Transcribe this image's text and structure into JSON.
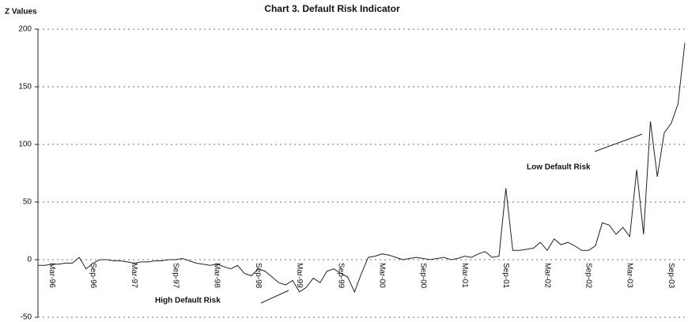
{
  "chart_data": {
    "type": "line",
    "title": "Chart 3.  Default Risk Indicator",
    "y_label": "Z Values",
    "annotations": [
      "Low Default Risk",
      "High Default Risk"
    ],
    "categories": [
      null,
      null,
      "Mar-96",
      null,
      null,
      null,
      null,
      null,
      "Sep-96",
      null,
      null,
      null,
      null,
      null,
      "Mar-97",
      null,
      null,
      null,
      null,
      null,
      "Sep-97",
      null,
      null,
      null,
      null,
      null,
      "Mar-98",
      null,
      null,
      null,
      null,
      null,
      "Sep-98",
      null,
      null,
      null,
      null,
      null,
      "Mar-99",
      null,
      null,
      null,
      null,
      null,
      "Sep-99",
      null,
      null,
      null,
      null,
      null,
      "Mar-00",
      null,
      null,
      null,
      null,
      null,
      "Sep-00",
      null,
      null,
      null,
      null,
      null,
      "Mar-01",
      null,
      null,
      null,
      null,
      null,
      "Sep-01",
      null,
      null,
      null,
      null,
      null,
      "Mar-02",
      null,
      null,
      null,
      null,
      null,
      "Sep-02",
      null,
      null,
      null,
      null,
      null,
      "Mar-03",
      null,
      null,
      null,
      null,
      null,
      "Sep-03",
      null,
      null
    ],
    "series": [
      {
        "name": "Z Values",
        "color": "#222222",
        "values": [
          -5,
          -5,
          -4,
          -4,
          -3,
          -3,
          2,
          -8,
          -3,
          0,
          0,
          -1,
          -1,
          -2,
          -3,
          -2,
          -2,
          -1,
          -1,
          0,
          0,
          1,
          -1,
          -3,
          -4,
          -5,
          -4,
          -6,
          -8,
          -5,
          -12,
          -14,
          -8,
          -10,
          -15,
          -20,
          -22,
          -18,
          -28,
          -24,
          -16,
          -20,
          -10,
          -8,
          -12,
          -15,
          -28,
          -12,
          2,
          3,
          5,
          4,
          2,
          0,
          1,
          2,
          1,
          0,
          1,
          2,
          0,
          1,
          3,
          2,
          5,
          7,
          2,
          3,
          62,
          8,
          8,
          9,
          10,
          15,
          8,
          18,
          13,
          15,
          12,
          8,
          8,
          12,
          32,
          30,
          22,
          28,
          20,
          78,
          22,
          120,
          72,
          110,
          118,
          135,
          188
        ]
      }
    ],
    "ylim": [
      -50,
      200
    ],
    "yticks": [
      -50,
      0,
      50,
      100,
      150,
      200
    ],
    "grid": true
  }
}
